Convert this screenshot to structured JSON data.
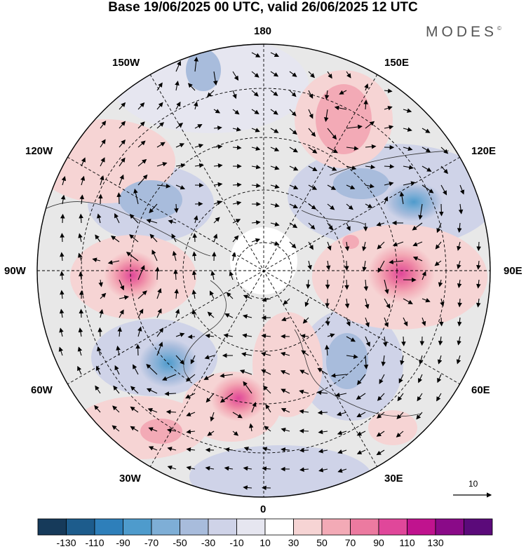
{
  "title": "Base 19/06/2025 00 UTC, valid 26/06/2025 12 UTC",
  "logo": "MODES",
  "logo_mark": "©",
  "longitude_labels": {
    "top": "180",
    "bottom": "0",
    "left": "90W",
    "right": "90E",
    "upper_left_1": "150W",
    "upper_left_2": "120W",
    "upper_right_1": "150E",
    "upper_right_2": "120E",
    "lower_left_1": "60W",
    "lower_left_2": "30W",
    "lower_right_1": "60E",
    "lower_right_2": "30E"
  },
  "reference_vector_label": "10",
  "colorbar": {
    "ticks": [
      "-130",
      "-110",
      "-90",
      "-70",
      "-50",
      "-30",
      "-10",
      "10",
      "30",
      "50",
      "70",
      "90",
      "110",
      "130"
    ],
    "colors": [
      "#163a5a",
      "#1d5c8c",
      "#2e7fba",
      "#4e9bcc",
      "#7eaed6",
      "#a8bcdc",
      "#cfd3e8",
      "#e6e6f0",
      "#ffffff",
      "#f6d4d4",
      "#f3aab6",
      "#ec7aa0",
      "#e0479a",
      "#c0138e",
      "#8a0a88",
      "#5b0a7a"
    ]
  },
  "anomaly_colors": {
    "land": "#e8e8e8",
    "neg1": "#e6e6f0",
    "neg2": "#cfd3e8",
    "neg3": "#a8bcdc",
    "neg4": "#7eaed6",
    "pos1": "#f6d4d4",
    "pos2": "#f3aab6",
    "pos3": "#ec7aa0"
  }
}
